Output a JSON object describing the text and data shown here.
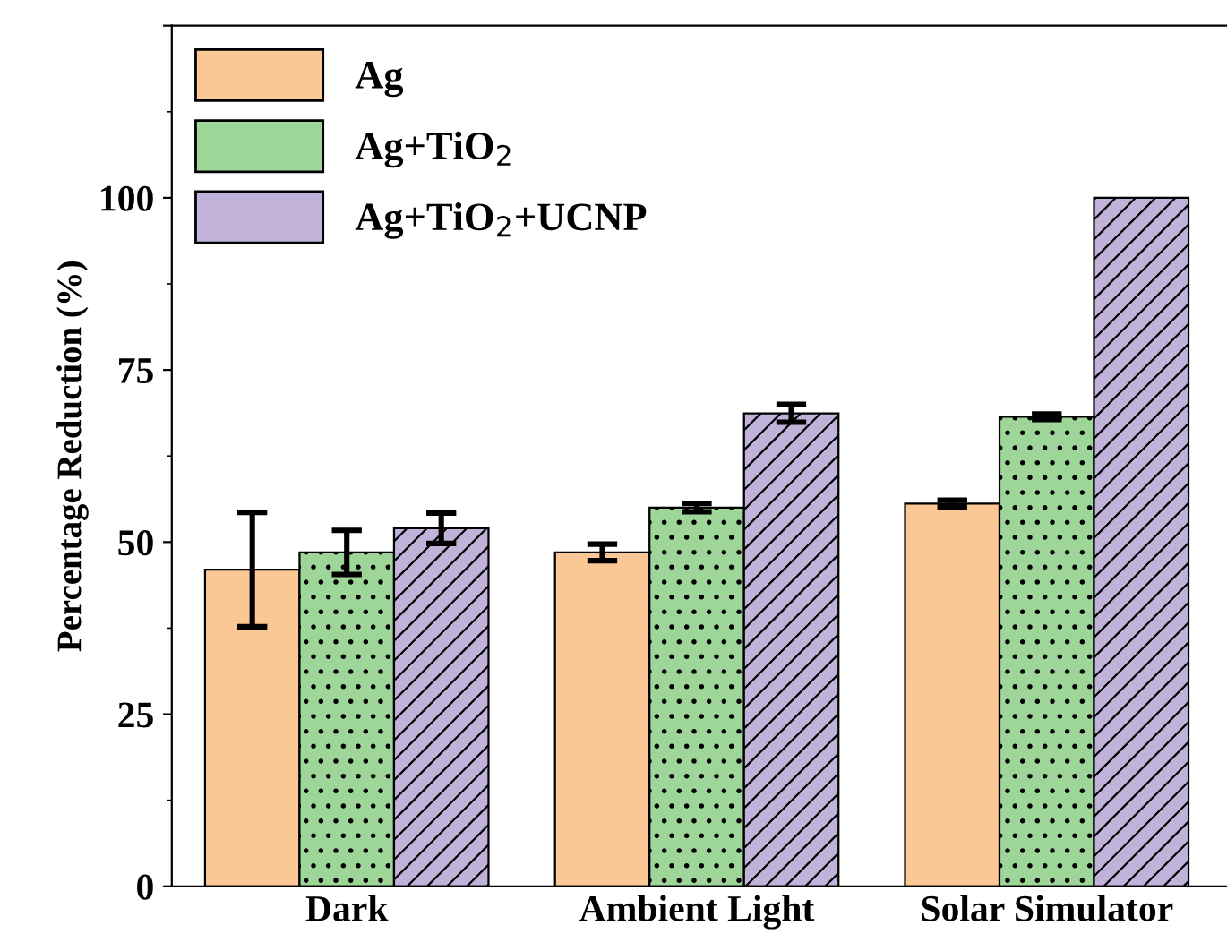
{
  "chart_data": {
    "type": "bar",
    "ylabel": "Percentage Reduction (%)",
    "categories": [
      "Dark",
      "Ambient Light",
      "Solar Simulator"
    ],
    "series": [
      {
        "name": "Ag",
        "color": "#fbc794",
        "values": [
          46,
          48.5,
          55.6
        ],
        "errors": [
          8.3,
          1.2,
          0.5
        ]
      },
      {
        "name": "Ag+TiO$_{2}$",
        "color": "#9ed69a",
        "values": [
          48.5,
          55,
          68.2
        ],
        "errors": [
          3.2,
          0.6,
          0.4
        ]
      },
      {
        "name": "Ag+TiO$_{2}$+UCNP",
        "color": "#c0b2d9",
        "values": [
          52,
          68.7,
          100
        ],
        "errors": [
          2.2,
          1.3,
          null
        ]
      }
    ],
    "ylim": [
      0,
      125
    ],
    "yticks": [
      0,
      25,
      50,
      75,
      100,
      {
        "value": 125,
        "label": null
      }
    ],
    "legend": "top left",
    "grid": false
  }
}
